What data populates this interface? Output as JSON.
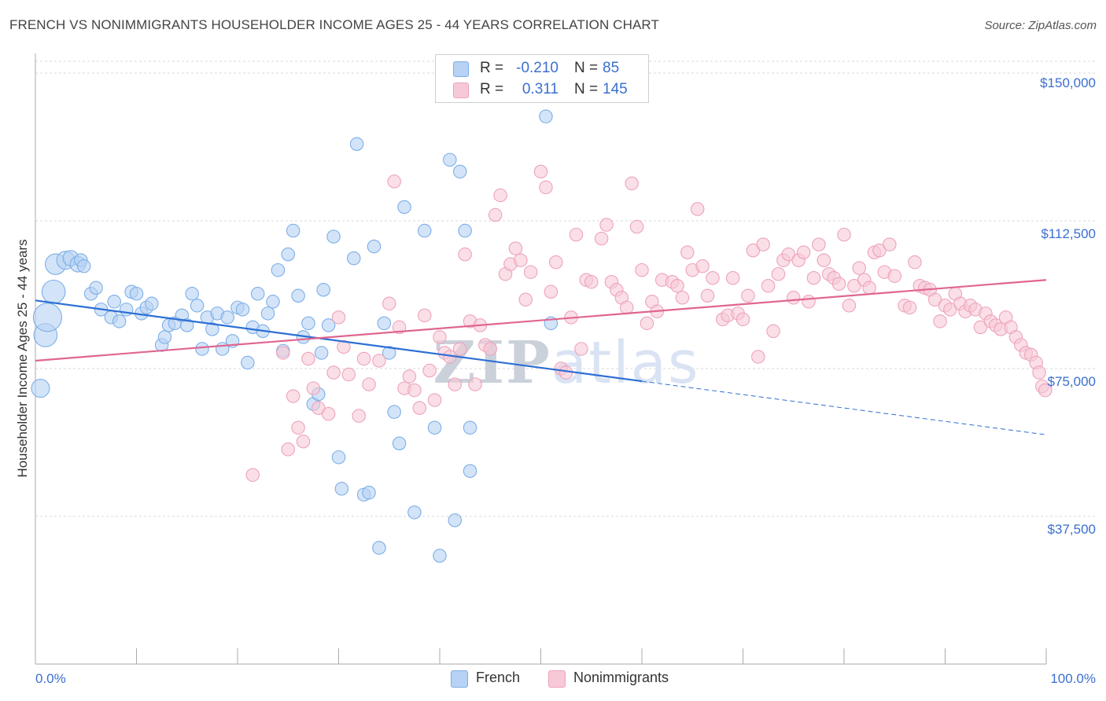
{
  "chart_data": {
    "type": "scatter",
    "title": "FRENCH VS NONIMMIGRANTS HOUSEHOLDER INCOME AGES 25 - 44 YEARS CORRELATION CHART",
    "source": "Source: ZipAtlas.com",
    "xlabel": "",
    "ylabel": "Householder Income Ages 25 - 44 years",
    "xlim": [
      0,
      100
    ],
    "ylim": [
      0,
      153000
    ],
    "x_tick_labels": [
      "0.0%",
      "100.0%"
    ],
    "y_ticks": [
      {
        "value": 150000,
        "label": "$150,000"
      },
      {
        "value": 112500,
        "label": "$112,500"
      },
      {
        "value": 75000,
        "label": "$75,000"
      },
      {
        "value": 37500,
        "label": "$37,500"
      }
    ],
    "grid": true,
    "legend_position": "top-center",
    "watermark": "ZIPatlas",
    "series": [
      {
        "name": "French",
        "color": "#7baee8",
        "fill": "#b7d2f4",
        "line_color": "#2d6fd4",
        "R": "-0.210",
        "N": "85",
        "R_label": "R =",
        "N_label": "N =",
        "trend": {
          "x0": 0,
          "y0": 92300,
          "x1": 60,
          "y1": 71800,
          "dashed_to_x": 100,
          "dashed_to_y": 58200
        },
        "points": [
          [
            0.5,
            70000,
            14
          ],
          [
            1.0,
            83500,
            18
          ],
          [
            1.2,
            88000,
            22
          ],
          [
            1.8,
            94500,
            18
          ],
          [
            2.0,
            101500,
            16
          ],
          [
            3.0,
            102500,
            14
          ],
          [
            3.5,
            103000,
            12
          ],
          [
            4.2,
            101500,
            12
          ],
          [
            4.5,
            102500,
            10
          ],
          [
            4.8,
            101000,
            10
          ],
          [
            5.5,
            94000,
            10
          ],
          [
            6.0,
            95500,
            10
          ],
          [
            6.5,
            90000,
            10
          ],
          [
            7.5,
            88000,
            10
          ],
          [
            7.8,
            92000,
            10
          ],
          [
            8.3,
            87000,
            10
          ],
          [
            9.0,
            90000,
            10
          ],
          [
            9.5,
            94500,
            10
          ],
          [
            10.0,
            94000,
            10
          ],
          [
            10.5,
            89000,
            10
          ],
          [
            11.0,
            90500,
            10
          ],
          [
            11.5,
            91500,
            10
          ],
          [
            12.5,
            81000,
            10
          ],
          [
            12.8,
            83000,
            10
          ],
          [
            13.2,
            86000,
            10
          ],
          [
            13.8,
            86500,
            10
          ],
          [
            14.5,
            88500,
            10
          ],
          [
            15.0,
            86000,
            10
          ],
          [
            15.5,
            94000,
            10
          ],
          [
            16.0,
            91000,
            10
          ],
          [
            16.5,
            80000,
            10
          ],
          [
            17.0,
            88000,
            10
          ],
          [
            17.5,
            85000,
            10
          ],
          [
            18.0,
            89000,
            10
          ],
          [
            18.5,
            80000,
            10
          ],
          [
            19.0,
            88000,
            10
          ],
          [
            19.5,
            82000,
            10
          ],
          [
            20.0,
            90500,
            10
          ],
          [
            20.5,
            90000,
            10
          ],
          [
            21.0,
            76500,
            10
          ],
          [
            21.5,
            85500,
            10
          ],
          [
            22.0,
            94000,
            10
          ],
          [
            22.5,
            84500,
            10
          ],
          [
            23.0,
            89000,
            10
          ],
          [
            23.5,
            92000,
            10
          ],
          [
            24.0,
            100000,
            10
          ],
          [
            24.5,
            79500,
            10
          ],
          [
            25.0,
            104000,
            10
          ],
          [
            25.5,
            110000,
            10
          ],
          [
            26.0,
            93500,
            10
          ],
          [
            26.5,
            83000,
            10
          ],
          [
            27.0,
            86500,
            10
          ],
          [
            27.5,
            66000,
            10
          ],
          [
            28.0,
            68500,
            10
          ],
          [
            28.3,
            79000,
            10
          ],
          [
            28.5,
            95000,
            10
          ],
          [
            29.0,
            86000,
            10
          ],
          [
            29.5,
            108500,
            10
          ],
          [
            30.0,
            52500,
            10
          ],
          [
            30.3,
            44500,
            10
          ],
          [
            31.5,
            103000,
            10
          ],
          [
            31.8,
            132000,
            10
          ],
          [
            32.5,
            43000,
            10
          ],
          [
            33.0,
            43500,
            10
          ],
          [
            33.5,
            106000,
            10
          ],
          [
            34.0,
            29500,
            10
          ],
          [
            34.5,
            86500,
            10
          ],
          [
            35.0,
            79000,
            10
          ],
          [
            35.5,
            64000,
            10
          ],
          [
            36.0,
            56000,
            10
          ],
          [
            36.5,
            116000,
            10
          ],
          [
            37.5,
            38500,
            10
          ],
          [
            38.5,
            110000,
            10
          ],
          [
            39.5,
            60000,
            10
          ],
          [
            40.0,
            27500,
            10
          ],
          [
            41.0,
            128000,
            10
          ],
          [
            41.5,
            36500,
            10
          ],
          [
            42.0,
            125000,
            10
          ],
          [
            42.5,
            110000,
            10
          ],
          [
            43.0,
            60000,
            10
          ],
          [
            43.0,
            49000,
            10
          ],
          [
            50.5,
            139000,
            10
          ],
          [
            51.0,
            86500,
            10
          ]
        ]
      },
      {
        "name": "Nonimmigrants",
        "color": "#eea2bb",
        "fill": "#f7c9d7",
        "line_color": "#e06591",
        "R": "0.311",
        "N": "145",
        "R_label": "R =",
        "N_label": "N =",
        "trend": {
          "x0": 0,
          "y0": 77000,
          "x1": 100,
          "y1": 97500
        },
        "points": [
          [
            21.5,
            48000,
            10
          ],
          [
            24.5,
            79000,
            10
          ],
          [
            25.0,
            54500,
            10
          ],
          [
            25.5,
            68000,
            10
          ],
          [
            26.0,
            60000,
            10
          ],
          [
            26.5,
            56500,
            10
          ],
          [
            27.0,
            77500,
            10
          ],
          [
            27.5,
            70000,
            10
          ],
          [
            28.0,
            65000,
            10
          ],
          [
            29.0,
            63500,
            10
          ],
          [
            29.5,
            74000,
            10
          ],
          [
            30.0,
            88000,
            10
          ],
          [
            30.5,
            80500,
            10
          ],
          [
            31.0,
            73500,
            10
          ],
          [
            32.0,
            63000,
            10
          ],
          [
            32.5,
            77500,
            10
          ],
          [
            33.0,
            71000,
            10
          ],
          [
            34.0,
            77000,
            10
          ],
          [
            35.0,
            91500,
            10
          ],
          [
            35.5,
            122500,
            10
          ],
          [
            36.0,
            85500,
            10
          ],
          [
            36.5,
            70000,
            10
          ],
          [
            37.0,
            73000,
            10
          ],
          [
            37.5,
            69500,
            10
          ],
          [
            38.0,
            65000,
            10
          ],
          [
            38.5,
            88500,
            10
          ],
          [
            39.0,
            74500,
            10
          ],
          [
            39.5,
            67000,
            10
          ],
          [
            40.0,
            83000,
            10
          ],
          [
            40.5,
            79000,
            10
          ],
          [
            41.0,
            78000,
            10
          ],
          [
            41.5,
            71000,
            10
          ],
          [
            42.0,
            80000,
            10
          ],
          [
            42.5,
            104000,
            10
          ],
          [
            43.0,
            87000,
            10
          ],
          [
            43.5,
            71000,
            10
          ],
          [
            44.0,
            86000,
            10
          ],
          [
            44.5,
            81000,
            10
          ],
          [
            45.0,
            80000,
            10
          ],
          [
            45.5,
            114000,
            10
          ],
          [
            46.0,
            119000,
            10
          ],
          [
            46.5,
            99000,
            10
          ],
          [
            47.0,
            101500,
            10
          ],
          [
            47.5,
            105500,
            10
          ],
          [
            48.0,
            102500,
            10
          ],
          [
            48.5,
            92500,
            10
          ],
          [
            49.0,
            99500,
            10
          ],
          [
            50.0,
            125000,
            10
          ],
          [
            50.5,
            121000,
            10
          ],
          [
            51.0,
            94500,
            10
          ],
          [
            51.5,
            102000,
            10
          ],
          [
            52.0,
            75000,
            10
          ],
          [
            52.5,
            74000,
            10
          ],
          [
            53.0,
            88000,
            10
          ],
          [
            53.5,
            109000,
            10
          ],
          [
            54.0,
            80000,
            10
          ],
          [
            54.5,
            97500,
            10
          ],
          [
            55.0,
            97000,
            10
          ],
          [
            56.0,
            108000,
            10
          ],
          [
            56.5,
            111500,
            10
          ],
          [
            57.0,
            97000,
            10
          ],
          [
            57.5,
            95000,
            10
          ],
          [
            58.0,
            93000,
            10
          ],
          [
            58.5,
            90500,
            10
          ],
          [
            59.0,
            122000,
            10
          ],
          [
            59.5,
            111000,
            10
          ],
          [
            60.0,
            100000,
            10
          ],
          [
            60.5,
            86500,
            10
          ],
          [
            61.0,
            92000,
            10
          ],
          [
            61.5,
            89500,
            10
          ],
          [
            62.0,
            97500,
            10
          ],
          [
            63.0,
            97000,
            10
          ],
          [
            63.5,
            96000,
            10
          ],
          [
            64.0,
            93000,
            10
          ],
          [
            64.5,
            104500,
            10
          ],
          [
            65.0,
            100000,
            10
          ],
          [
            65.5,
            115500,
            10
          ],
          [
            66.0,
            101000,
            10
          ],
          [
            66.5,
            93500,
            10
          ],
          [
            67.0,
            98000,
            10
          ],
          [
            68.0,
            87500,
            10
          ],
          [
            68.5,
            88500,
            10
          ],
          [
            69.0,
            98000,
            10
          ],
          [
            69.5,
            89000,
            10
          ],
          [
            70.0,
            87500,
            10
          ],
          [
            70.5,
            93500,
            10
          ],
          [
            71.0,
            105000,
            10
          ],
          [
            71.5,
            78000,
            10
          ],
          [
            72.0,
            106500,
            10
          ],
          [
            72.5,
            96000,
            10
          ],
          [
            73.0,
            84500,
            10
          ],
          [
            73.5,
            99000,
            10
          ],
          [
            74.0,
            102500,
            10
          ],
          [
            74.5,
            104000,
            10
          ],
          [
            75.0,
            93000,
            10
          ],
          [
            75.5,
            102500,
            10
          ],
          [
            76.0,
            104500,
            10
          ],
          [
            76.5,
            92000,
            10
          ],
          [
            77.0,
            98000,
            10
          ],
          [
            77.5,
            106500,
            10
          ],
          [
            78.0,
            102500,
            10
          ],
          [
            78.5,
            99000,
            10
          ],
          [
            79.0,
            98000,
            10
          ],
          [
            79.5,
            96500,
            10
          ],
          [
            80.0,
            109000,
            10
          ],
          [
            80.5,
            91000,
            10
          ],
          [
            81.0,
            96000,
            10
          ],
          [
            81.5,
            100500,
            10
          ],
          [
            82.0,
            97500,
            10
          ],
          [
            82.5,
            95500,
            10
          ],
          [
            83.0,
            104500,
            10
          ],
          [
            83.5,
            105000,
            10
          ],
          [
            84.0,
            99500,
            10
          ],
          [
            84.5,
            106500,
            10
          ],
          [
            85.0,
            98500,
            10
          ],
          [
            86.0,
            91000,
            10
          ],
          [
            86.5,
            90500,
            10
          ],
          [
            87.0,
            102000,
            10
          ],
          [
            87.5,
            96000,
            10
          ],
          [
            88.0,
            95500,
            10
          ],
          [
            88.5,
            95000,
            10
          ],
          [
            89.0,
            92500,
            10
          ],
          [
            89.5,
            87000,
            10
          ],
          [
            90.0,
            91000,
            10
          ],
          [
            90.5,
            90000,
            10
          ],
          [
            91.0,
            94000,
            10
          ],
          [
            91.5,
            91500,
            10
          ],
          [
            92.0,
            89500,
            10
          ],
          [
            92.5,
            91000,
            10
          ],
          [
            93.0,
            90000,
            10
          ],
          [
            93.5,
            85500,
            10
          ],
          [
            94.0,
            89000,
            10
          ],
          [
            94.5,
            87000,
            10
          ],
          [
            95.0,
            86000,
            10
          ],
          [
            95.5,
            85000,
            10
          ],
          [
            96.0,
            88000,
            10
          ],
          [
            96.5,
            85500,
            10
          ],
          [
            97.0,
            83000,
            10
          ],
          [
            97.5,
            81000,
            10
          ],
          [
            98.0,
            79000,
            10
          ],
          [
            98.5,
            78500,
            10
          ],
          [
            99.0,
            76500,
            10
          ],
          [
            99.3,
            74000,
            10
          ],
          [
            99.6,
            70500,
            10
          ],
          [
            99.9,
            69500,
            10
          ]
        ]
      }
    ]
  }
}
